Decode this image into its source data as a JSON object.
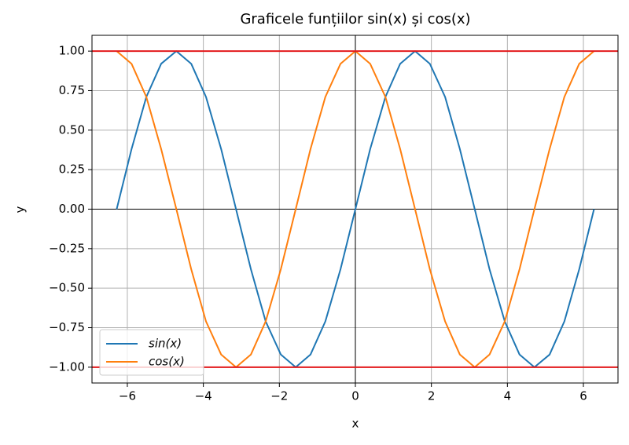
{
  "chart_data": {
    "type": "line",
    "title": "Graficele funțiilor sin(x) și cos(x)",
    "xlabel": "x",
    "ylabel": "y",
    "x": [
      -6.28,
      -5.89,
      -5.5,
      -5.11,
      -4.71,
      -4.32,
      -3.93,
      -3.53,
      -3.14,
      -2.75,
      -2.36,
      -1.96,
      -1.57,
      -1.18,
      -0.79,
      -0.39,
      0,
      0.39,
      0.79,
      1.18,
      1.57,
      1.96,
      2.36,
      2.75,
      3.14,
      3.53,
      3.93,
      4.32,
      4.71,
      5.11,
      5.5,
      5.89,
      6.28
    ],
    "series": [
      {
        "name": "sin(x)",
        "color": "#1f77b4",
        "values": [
          0,
          0.38,
          0.71,
          0.92,
          1,
          0.92,
          0.71,
          0.38,
          0,
          -0.38,
          -0.71,
          -0.92,
          -1,
          -0.92,
          -0.71,
          -0.38,
          0,
          0.38,
          0.71,
          0.92,
          1,
          0.92,
          0.71,
          0.38,
          0,
          -0.38,
          -0.71,
          -0.92,
          -1,
          -0.92,
          -0.71,
          -0.38,
          0
        ]
      },
      {
        "name": "cos(x)",
        "color": "#ff7f0e",
        "values": [
          1,
          0.92,
          0.71,
          0.38,
          0,
          -0.38,
          -0.71,
          -0.92,
          -1,
          -0.92,
          -0.71,
          -0.38,
          0,
          0.38,
          0.71,
          0.92,
          1,
          0.92,
          0.71,
          0.38,
          0,
          -0.38,
          -0.71,
          -0.92,
          -1,
          -0.92,
          -0.71,
          -0.38,
          0,
          0.38,
          0.71,
          0.92,
          1
        ]
      }
    ],
    "xlim": [
      -6.93,
      6.91
    ],
    "ylim": [
      -1.1,
      1.1
    ],
    "xticks": [
      {
        "value": -6,
        "label": "−6"
      },
      {
        "value": -4,
        "label": "−4"
      },
      {
        "value": -2,
        "label": "−2"
      },
      0,
      2,
      4,
      6
    ],
    "yticks": [
      {
        "value": 1,
        "label": "1.00"
      },
      {
        "value": 0.75,
        "label": "0.75"
      },
      {
        "value": 0.5,
        "label": "0.50"
      },
      {
        "value": 0.25,
        "label": "0.25"
      },
      {
        "value": 0,
        "label": "0.00"
      },
      {
        "value": -0.25,
        "label": "−0.25"
      },
      {
        "value": -0.5,
        "label": "−0.50"
      },
      {
        "value": -0.75,
        "label": "−0.75"
      },
      {
        "value": -1,
        "label": "−1.00"
      }
    ],
    "grid": true,
    "hlines": [
      {
        "y": 1,
        "color": "#e31a1c"
      },
      {
        "y": -1,
        "color": "#e31a1c"
      }
    ],
    "axis_lines": {
      "x": 0,
      "y": 0,
      "color": "#000000"
    },
    "legend": "lower left"
  }
}
